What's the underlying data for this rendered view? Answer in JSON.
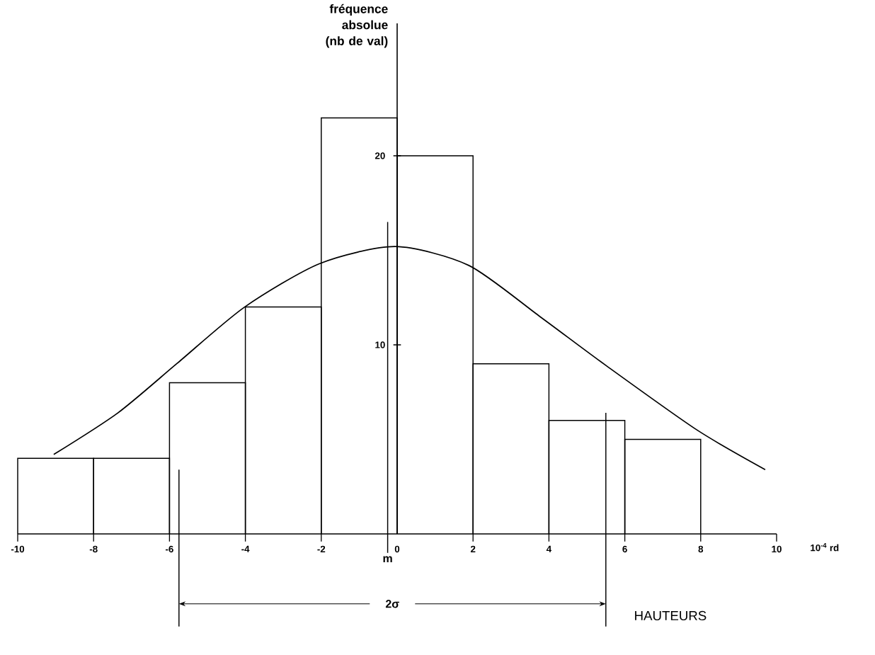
{
  "chart_data": {
    "type": "histogram",
    "xlabel": "HAUTEURS",
    "ylabel": "fréquence absolue (nb de val)",
    "bins": [
      -10,
      -8,
      -6,
      -4,
      -2,
      0,
      2,
      4,
      6,
      8
    ],
    "values": [
      4,
      4,
      8,
      12,
      22,
      20,
      9,
      6,
      5
    ],
    "color": "#000000",
    "series": [
      {
        "type": "line",
        "color": "#000000",
        "x": [
          -9.05,
          -7.36,
          -5.81,
          -4.02,
          -2.04,
          -0.05,
          1.89,
          3.76,
          5.51,
          7.9,
          9.7
        ],
        "values": [
          4.2,
          6.4,
          9.0,
          12.0,
          14.3,
          15.2,
          14.2,
          11.5,
          8.9,
          5.5,
          3.4
        ]
      }
    ],
    "xlim": [
      -10,
      10
    ],
    "ylim": [
      0,
      27
    ],
    "xticks": [
      -10,
      -8,
      -6,
      -4,
      -2,
      0,
      2,
      4,
      6,
      8,
      10
    ],
    "yticks": [
      10,
      20
    ],
    "ref_lines": [
      {
        "axis": "x",
        "value": -0.25,
        "label": "m"
      },
      {
        "axis": "x",
        "value": -5.75
      },
      {
        "axis": "x",
        "value": 5.5
      }
    ],
    "annotations": [
      "2σ",
      "10$^{-4}$ rd"
    ],
    "marker": "none",
    "line_style": "solid"
  }
}
